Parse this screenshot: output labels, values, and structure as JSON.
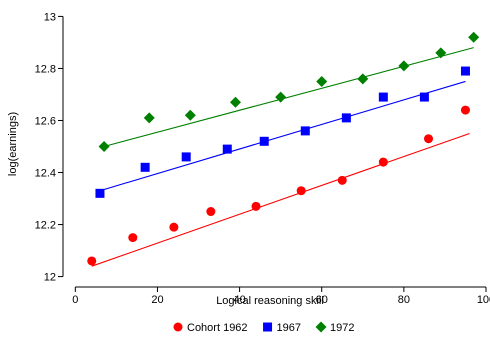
{
  "chart_data": {
    "type": "scatter",
    "title": "",
    "xlabel": "Logical reasoning skill",
    "ylabel": "log(earnings)",
    "xlim": [
      -3,
      100
    ],
    "ylim": [
      11.96,
      13.04
    ],
    "xticks": [
      0,
      20,
      40,
      60,
      80,
      100
    ],
    "yticks": [
      12,
      12.2,
      12.4,
      12.6,
      12.8,
      13
    ],
    "xtick_labels": [
      "0",
      "20",
      "40",
      "60",
      "80",
      "100"
    ],
    "ytick_labels": [
      "12",
      "12.2",
      "12.4",
      "12.6",
      "12.8",
      "13"
    ],
    "grid": false,
    "legend_position": "bottom",
    "series": [
      {
        "name": "Cohort 1962",
        "marker": "circle",
        "color": "#ff0000",
        "points": [
          [
            4,
            12.06
          ],
          [
            14,
            12.15
          ],
          [
            24,
            12.19
          ],
          [
            33,
            12.25
          ],
          [
            44,
            12.27
          ],
          [
            55,
            12.33
          ],
          [
            65,
            12.37
          ],
          [
            75,
            12.44
          ],
          [
            86,
            12.53
          ],
          [
            95,
            12.64
          ]
        ],
        "fit_line": [
          [
            4,
            12.04
          ],
          [
            96,
            12.55
          ]
        ]
      },
      {
        "name": "1967",
        "marker": "square",
        "color": "#0000ff",
        "points": [
          [
            6,
            12.32
          ],
          [
            17,
            12.42
          ],
          [
            27,
            12.46
          ],
          [
            37,
            12.49
          ],
          [
            46,
            12.52
          ],
          [
            56,
            12.56
          ],
          [
            66,
            12.61
          ],
          [
            75,
            12.69
          ],
          [
            85,
            12.69
          ],
          [
            95,
            12.79
          ]
        ],
        "fit_line": [
          [
            6,
            12.33
          ],
          [
            95,
            12.75
          ]
        ]
      },
      {
        "name": "1972",
        "marker": "diamond",
        "color": "#008000",
        "points": [
          [
            7,
            12.5
          ],
          [
            18,
            12.61
          ],
          [
            28,
            12.62
          ],
          [
            39,
            12.67
          ],
          [
            50,
            12.69
          ],
          [
            60,
            12.75
          ],
          [
            70,
            12.76
          ],
          [
            80,
            12.81
          ],
          [
            89,
            12.86
          ],
          [
            97,
            12.92
          ]
        ],
        "fit_line": [
          [
            7,
            12.5
          ],
          [
            97,
            12.88
          ]
        ]
      }
    ]
  }
}
